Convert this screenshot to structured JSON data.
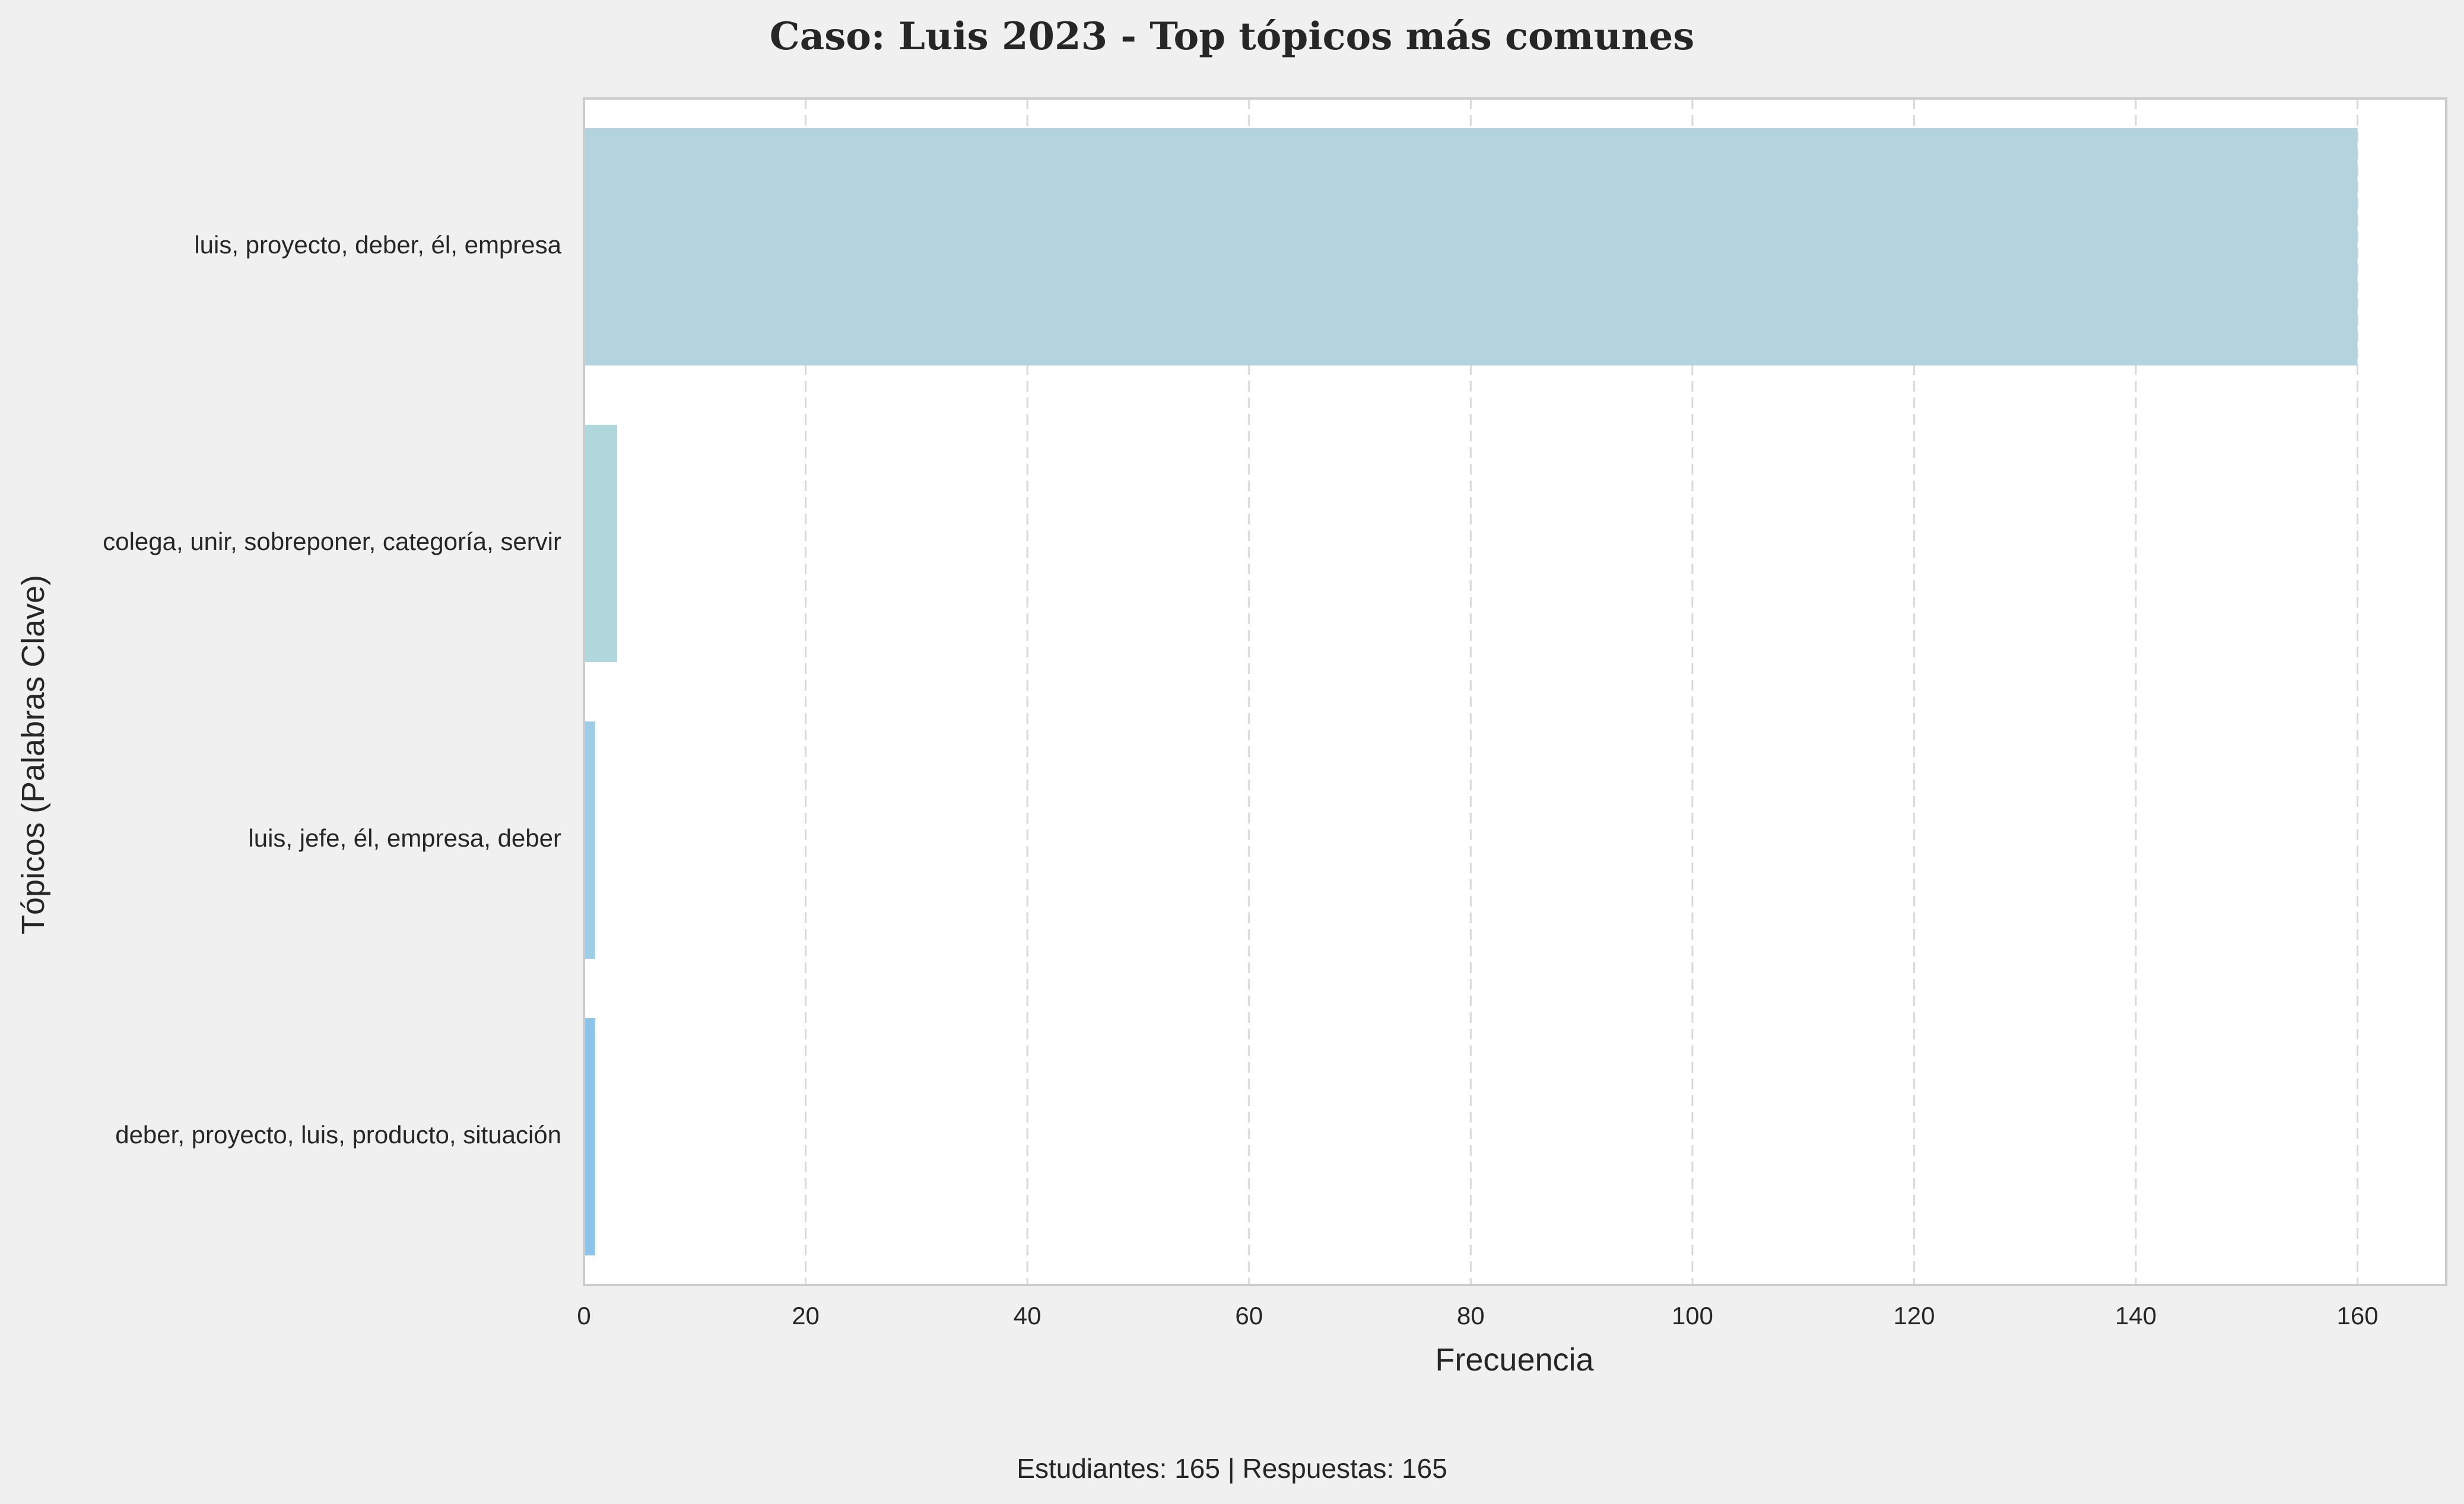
{
  "chart_data": {
    "type": "bar",
    "orientation": "horizontal",
    "title": "Caso: Luis 2023 - Top tópicos más comunes",
    "xlabel": "Frecuencia",
    "ylabel": "Tópicos (Palabras Clave)",
    "categories": [
      "luis, proyecto, deber, él, empresa",
      "colega, unir, sobreponer, categoría, servir",
      "luis, jefe, él, empresa, deber",
      "deber, proyecto, luis, producto, situación"
    ],
    "values": [
      160,
      3,
      1,
      1
    ],
    "colors": [
      "#b3d4de",
      "#b0d8dc",
      "#9fcde8",
      "#8cc4ea"
    ],
    "xlim": [
      0,
      168
    ],
    "xticks": [
      "0",
      "20",
      "40",
      "60",
      "80",
      "100",
      "120",
      "140",
      "160"
    ],
    "grid": "vertical dashed",
    "legend": "none"
  },
  "footer": {
    "note": "Estudiantes: 165 | Respuestas: 165"
  }
}
